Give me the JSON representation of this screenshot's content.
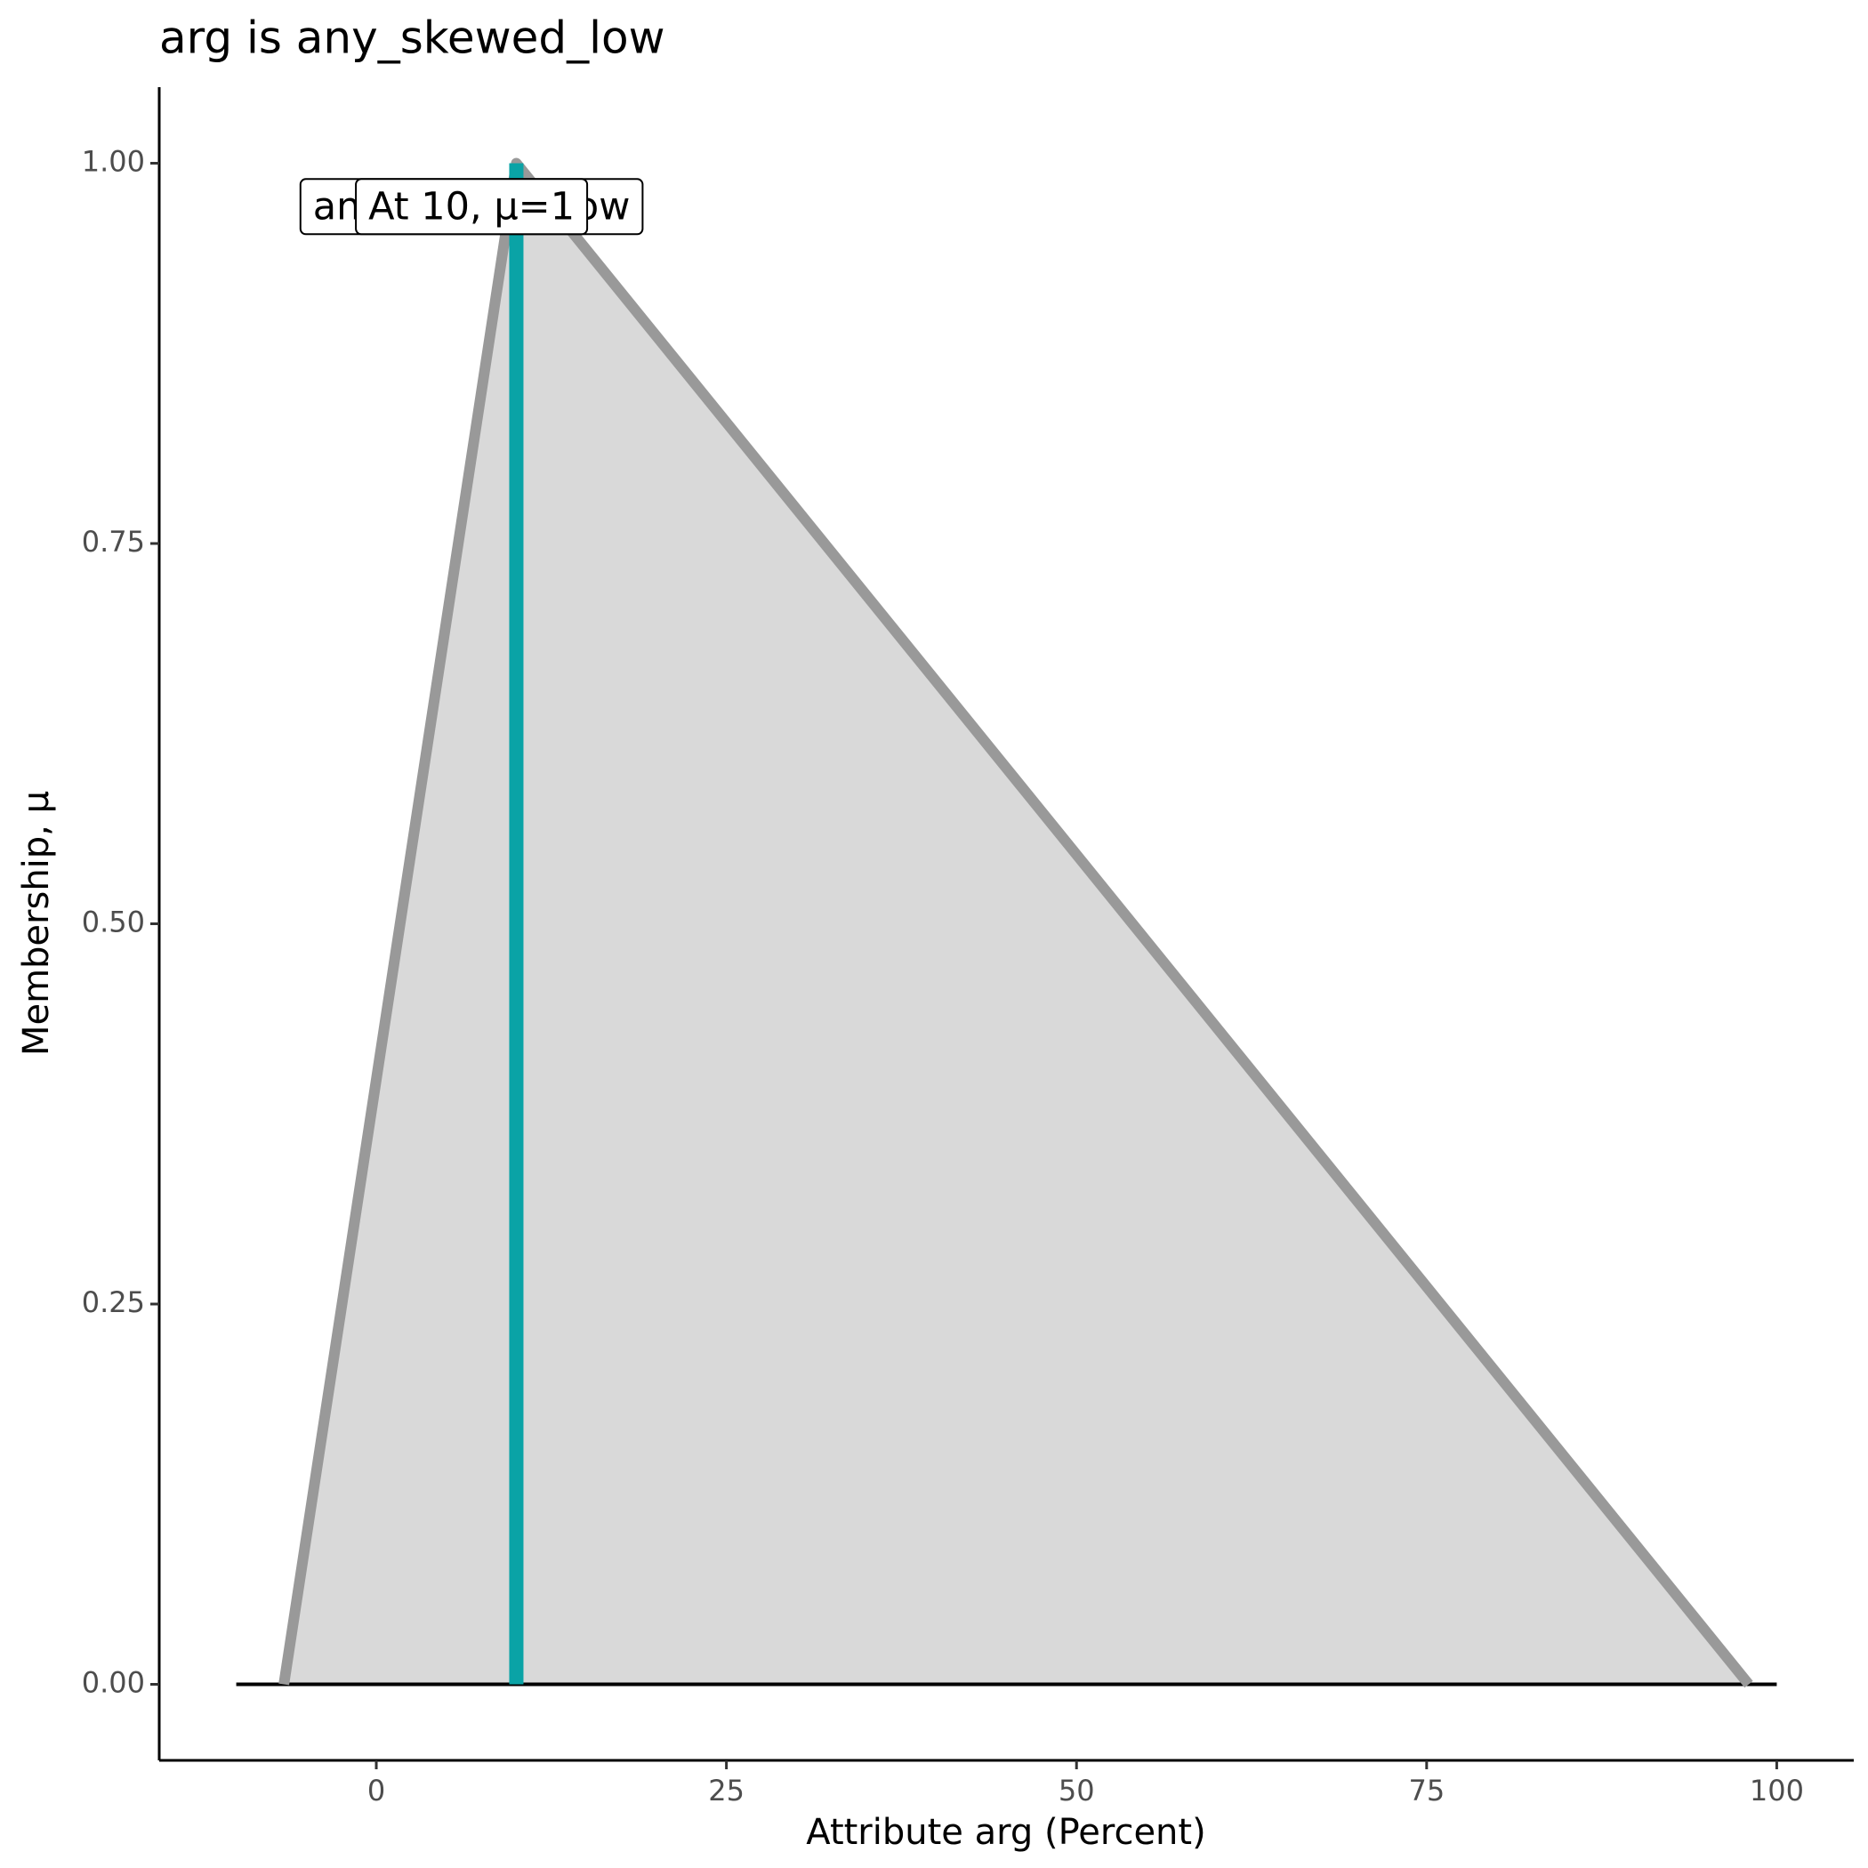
{
  "chart_data": {
    "type": "membership",
    "title": "arg is any_skewed_low",
    "x_label": "Attribute arg (Percent)",
    "y_label": "Membership, μ",
    "xlim": [
      -15.5,
      105.5
    ],
    "ylim": [
      -0.05,
      1.05
    ],
    "xticks": [
      0,
      25,
      50,
      75,
      100
    ],
    "yticks": [
      {
        "value": 0,
        "label": "0.00"
      },
      {
        "value": 0.25,
        "label": "0.25"
      },
      {
        "value": 0.5,
        "label": "0.50"
      },
      {
        "value": 0.75,
        "label": "0.75"
      },
      {
        "value": 1,
        "label": "1.00"
      }
    ],
    "shape": {
      "color": "#999999",
      "fill": "#d9d9d9",
      "x": [
        -6.6,
        10,
        98
      ],
      "values": [
        0,
        1,
        0
      ]
    },
    "baseline": {
      "color": "#000000",
      "x": [
        -10,
        100
      ],
      "values": [
        0,
        0
      ]
    },
    "marker": {
      "color": "#0aa3a6",
      "x": [
        10,
        10
      ],
      "values": [
        0,
        1
      ]
    },
    "annotations": [
      {
        "text": "any_skewed_low",
        "x": 6.8,
        "y": 0.97
      },
      {
        "text": "At 10, μ=1",
        "x": 6.8,
        "y": 0.97
      }
    ]
  }
}
